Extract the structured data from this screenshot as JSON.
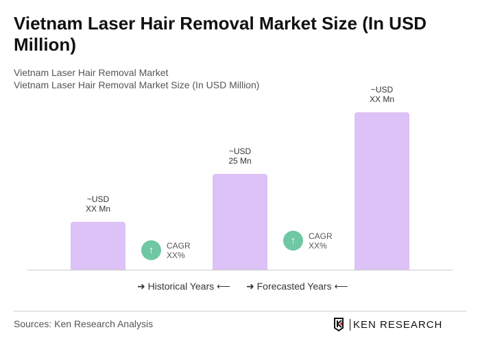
{
  "chart_data": {
    "type": "bar",
    "title": "Vietnam Laser Hair Removal Market Size (In USD Million)",
    "subtitle": [
      "Vietnam Laser Hair Removal Market",
      "Vietnam Laser Hair Removal Market Size (In USD Million)"
    ],
    "categories": [
      "",
      "",
      ""
    ],
    "values": [
      12.5,
      25,
      41
    ],
    "data_labels": [
      [
        "~USD",
        "XX Mn"
      ],
      [
        "~USD",
        "25 Mn"
      ],
      [
        "~USD",
        "XX Mn"
      ]
    ],
    "bar_color": "#dcc2f6",
    "cagr": [
      {
        "label": "CAGR",
        "value": "XX%"
      },
      {
        "label": "CAGR",
        "value": "XX%"
      }
    ],
    "cagr_color": "#6fc7a3",
    "legend": [
      "Historical Years",
      "Forecasted Years"
    ],
    "grid": false
  },
  "footer": {
    "source": "Sources: Ken Research Analysis",
    "logo": "KEN RESEARCH"
  }
}
